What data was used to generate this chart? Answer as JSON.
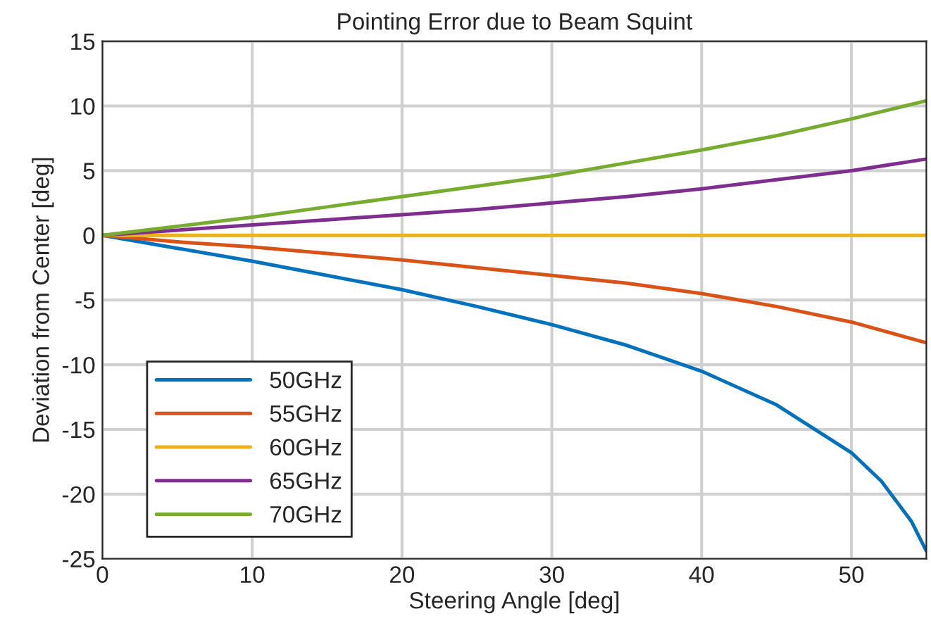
{
  "chart_data": {
    "type": "line",
    "title": "Pointing Error due to Beam Squint",
    "xlabel": "Steering Angle [deg]",
    "ylabel": "Deviation from Center [deg]",
    "x": [
      0,
      5,
      10,
      15,
      20,
      25,
      30,
      35,
      40,
      45,
      50,
      55
    ],
    "series": [
      {
        "name": "50GHz",
        "color": "#0072bd",
        "x": [
          0,
          5,
          10,
          15,
          20,
          25,
          30,
          35,
          40,
          45,
          50,
          52,
          54,
          55
        ],
        "values": [
          0,
          -1.0,
          -2.0,
          -3.1,
          -4.2,
          -5.5,
          -6.9,
          -8.5,
          -10.5,
          -13.1,
          -16.8,
          -19.0,
          -22.1,
          -24.4
        ]
      },
      {
        "name": "55GHz",
        "color": "#d95319",
        "values": [
          0,
          -0.5,
          -0.9,
          -1.4,
          -1.9,
          -2.5,
          -3.1,
          -3.7,
          -4.5,
          -5.5,
          -6.7,
          -8.3
        ]
      },
      {
        "name": "60GHz",
        "color": "#edb120",
        "values": [
          0,
          0,
          0,
          0,
          0,
          0,
          0,
          0,
          0,
          0,
          0,
          0
        ]
      },
      {
        "name": "65GHz",
        "color": "#7e2f8e",
        "values": [
          0,
          0.4,
          0.8,
          1.2,
          1.6,
          2.0,
          2.5,
          3.0,
          3.6,
          4.3,
          5.0,
          5.9
        ]
      },
      {
        "name": "70GHz",
        "color": "#77ac30",
        "values": [
          0,
          0.7,
          1.4,
          2.2,
          3.0,
          3.8,
          4.6,
          5.6,
          6.6,
          7.7,
          9.0,
          10.4
        ]
      }
    ],
    "xlim": [
      0,
      55
    ],
    "ylim": [
      -25,
      15
    ],
    "xticks": [
      0,
      10,
      20,
      30,
      40,
      50
    ],
    "yticks": [
      -25,
      -20,
      -15,
      -10,
      -5,
      0,
      5,
      10,
      15
    ],
    "grid": true,
    "legend": "bottom left",
    "line_style": "solid",
    "marker": "none"
  }
}
